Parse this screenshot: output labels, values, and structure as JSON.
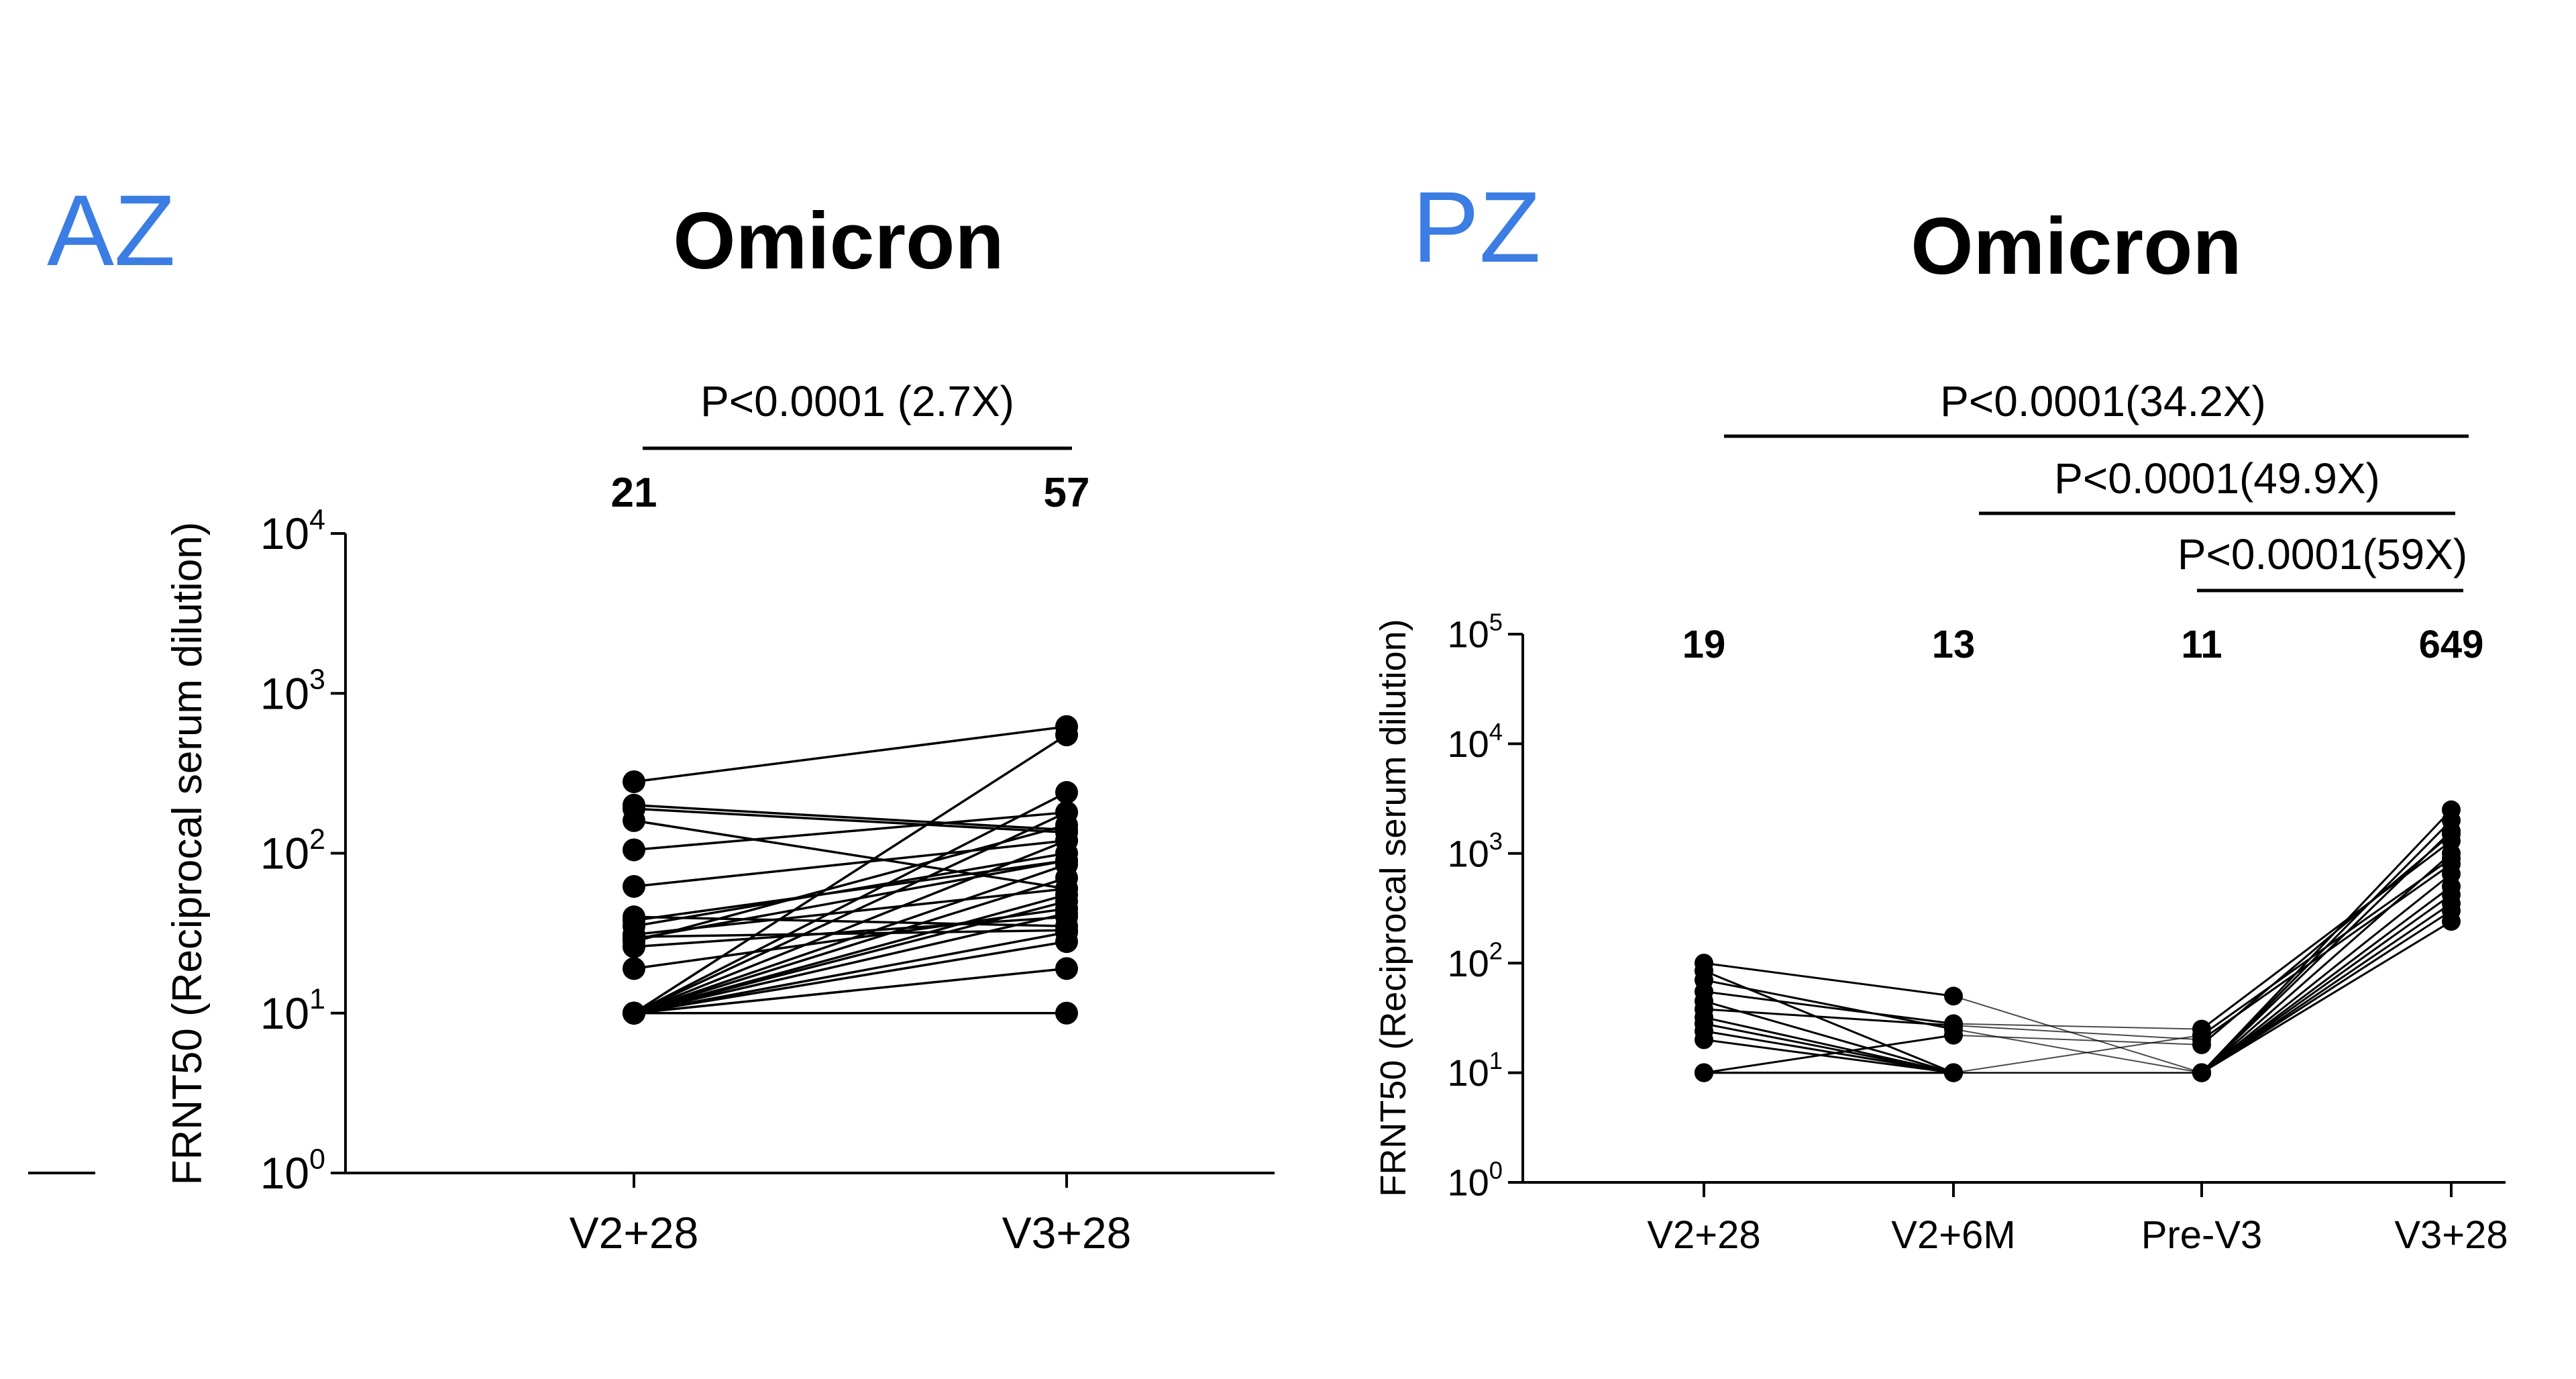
{
  "chart_data": [
    {
      "type": "line",
      "panel_label": "AZ",
      "panel_label_color": "#3b7de3",
      "title": "Omicron",
      "ylabel": "FRNT50  (Reciprocal serum dilution)",
      "yscale": "log",
      "ylim": [
        1,
        10000
      ],
      "yticks": [
        {
          "value": 1,
          "base": "10",
          "exp": "0"
        },
        {
          "value": 10,
          "base": "10",
          "exp": "1"
        },
        {
          "value": 100,
          "base": "10",
          "exp": "2"
        },
        {
          "value": 1000,
          "base": "10",
          "exp": "3"
        },
        {
          "value": 10000,
          "base": "10",
          "exp": "4"
        }
      ],
      "categories": [
        "V2+28",
        "V3+28"
      ],
      "medians": [
        "21",
        "57"
      ],
      "comparisons": [
        {
          "label": "P<0.0001 (2.7X)",
          "from": 0,
          "to": 1
        }
      ],
      "pairs": [
        [
          280,
          620
        ],
        [
          200,
          140
        ],
        [
          190,
          135
        ],
        [
          160,
          60
        ],
        [
          105,
          180
        ],
        [
          62,
          120
        ],
        [
          40,
          35
        ],
        [
          38,
          90
        ],
        [
          31,
          60
        ],
        [
          29,
          90
        ],
        [
          26,
          40
        ],
        [
          19,
          45
        ],
        [
          10,
          550
        ],
        [
          10,
          240
        ],
        [
          10,
          180
        ],
        [
          10,
          120
        ],
        [
          10,
          85
        ],
        [
          10,
          70
        ],
        [
          10,
          55
        ],
        [
          10,
          50
        ],
        [
          10,
          42
        ],
        [
          10,
          32
        ],
        [
          10,
          28
        ],
        [
          10,
          19
        ],
        [
          10,
          10
        ],
        [
          30,
          33
        ],
        [
          35,
          100
        ],
        [
          28,
          150
        ]
      ]
    },
    {
      "type": "line",
      "panel_label": "PZ",
      "panel_label_color": "#3b7de3",
      "title": "Omicron",
      "ylabel": "FRNT50  (Reciprocal serum dilution)",
      "yscale": "log",
      "ylim": [
        1,
        100000
      ],
      "yticks": [
        {
          "value": 1,
          "base": "10",
          "exp": "0"
        },
        {
          "value": 10,
          "base": "10",
          "exp": "1"
        },
        {
          "value": 100,
          "base": "10",
          "exp": "2"
        },
        {
          "value": 1000,
          "base": "10",
          "exp": "3"
        },
        {
          "value": 10000,
          "base": "10",
          "exp": "4"
        },
        {
          "value": 100000,
          "base": "10",
          "exp": "5"
        }
      ],
      "categories": [
        "V2+28",
        "V2+6M",
        "Pre-V3",
        "V3+28"
      ],
      "medians": [
        "19",
        "13",
        "11",
        "649"
      ],
      "comparisons": [
        {
          "label": "P<0.0001(34.2X)",
          "from": 0,
          "to": 3
        },
        {
          "label": "P<0.0001(49.9X)",
          "from": 1,
          "to": 3
        },
        {
          "label": "P<0.0001(59X)",
          "from": 2,
          "to": 3
        }
      ],
      "series": [
        {
          "values": [
            100,
            50,
            10,
            2500
          ]
        },
        {
          "values": [
            85,
            10,
            10,
            2000
          ]
        },
        {
          "values": [
            70,
            25,
            10,
            1600
          ]
        },
        {
          "values": [
            55,
            28,
            25,
            1300
          ]
        },
        {
          "values": [
            45,
            10,
            10,
            1000
          ]
        },
        {
          "values": [
            38,
            27,
            20,
            800
          ]
        },
        {
          "values": [
            32,
            10,
            10,
            650
          ]
        },
        {
          "values": [
            28,
            10,
            10,
            500
          ]
        },
        {
          "values": [
            24,
            10,
            10,
            420
          ]
        },
        {
          "values": [
            20,
            10,
            10,
            350
          ]
        },
        {
          "values": [
            10,
            10,
            10,
            300
          ]
        },
        {
          "values": [
            10,
            10,
            10,
            240
          ]
        },
        {
          "values": [
            10,
            22,
            18,
            1500
          ]
        },
        {
          "values": [
            10,
            10,
            22,
            900
          ]
        }
      ]
    }
  ]
}
